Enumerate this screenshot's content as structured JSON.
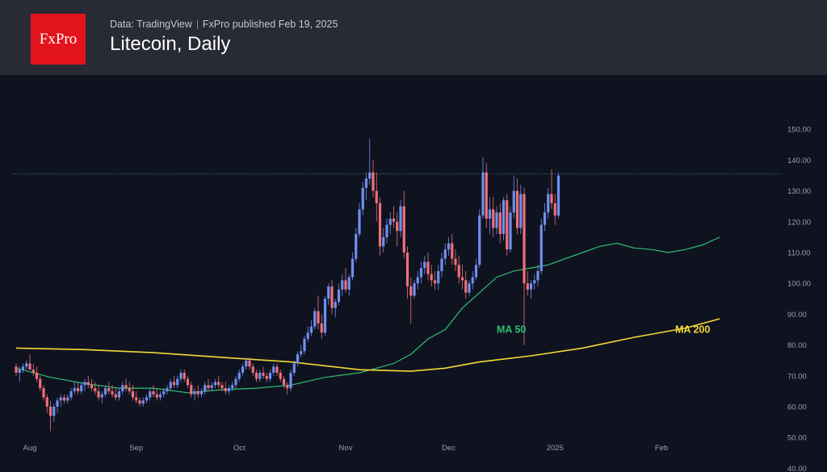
{
  "header": {
    "logo_text": "FxPro",
    "source": "Data: TradingView",
    "publisher": "FxPro published Feb 19, 2025",
    "title": "Litecoin, Daily"
  },
  "chart_data": {
    "type": "candlestick",
    "title": "Litecoin, Daily",
    "ylim": [
      40,
      152
    ],
    "y_ticks": [
      "150.00",
      "140.00",
      "130.00",
      "120.00",
      "110.00",
      "100.00",
      "90.00",
      "80.00",
      "70.00",
      "60.00",
      "50.00",
      "40.00"
    ],
    "x_ticks": [
      {
        "label": "Aug",
        "index": 4
      },
      {
        "label": "Sep",
        "index": 35
      },
      {
        "label": "Oct",
        "index": 65
      },
      {
        "label": "Nov",
        "index": 96
      },
      {
        "label": "Dec",
        "index": 126
      },
      {
        "label": "2025",
        "index": 157
      },
      {
        "label": "Feb",
        "index": 188
      }
    ],
    "current_level": 135.5,
    "annotations": [
      {
        "text": "MA 50",
        "index": 140,
        "value": 84,
        "color": "#2fbf71"
      },
      {
        "text": "MA 200",
        "index": 192,
        "value": 84,
        "color": "#f2d933"
      }
    ],
    "up_color": "#6f8ff0",
    "down_color": "#ef7077",
    "ma50_color": "#2fbf71",
    "ma200_color": "#f2d933",
    "series": [
      {
        "name": "MA 50",
        "values": [
          [
            0,
            72.5
          ],
          [
            10,
            69.5
          ],
          [
            20,
            67.5
          ],
          [
            30,
            66
          ],
          [
            40,
            66
          ],
          [
            50,
            64.5
          ],
          [
            60,
            65.5
          ],
          [
            70,
            66
          ],
          [
            80,
            67
          ],
          [
            90,
            69.5
          ],
          [
            100,
            71
          ],
          [
            105,
            72.5
          ],
          [
            110,
            74
          ],
          [
            115,
            77
          ],
          [
            120,
            82
          ],
          [
            125,
            85
          ],
          [
            130,
            92
          ],
          [
            135,
            97
          ],
          [
            140,
            102
          ],
          [
            145,
            104
          ],
          [
            150,
            105
          ],
          [
            155,
            106
          ],
          [
            160,
            108
          ],
          [
            165,
            110
          ],
          [
            170,
            112
          ],
          [
            175,
            113
          ],
          [
            180,
            111.5
          ],
          [
            185,
            111
          ],
          [
            190,
            110
          ],
          [
            195,
            111
          ],
          [
            200,
            112.5
          ],
          [
            205,
            115
          ]
        ]
      },
      {
        "name": "MA 200",
        "values": [
          [
            0,
            79
          ],
          [
            20,
            78.5
          ],
          [
            40,
            77.5
          ],
          [
            60,
            76
          ],
          [
            80,
            74.5
          ],
          [
            100,
            72
          ],
          [
            115,
            71.5
          ],
          [
            125,
            72.5
          ],
          [
            135,
            74.5
          ],
          [
            150,
            76.5
          ],
          [
            165,
            79
          ],
          [
            180,
            82.5
          ],
          [
            195,
            85.5
          ],
          [
            205,
            88.5
          ]
        ]
      }
    ],
    "candles": [
      [
        73,
        74,
        70,
        71
      ],
      [
        71,
        73,
        68,
        72
      ],
      [
        72,
        74,
        71,
        73
      ],
      [
        73,
        75,
        72,
        74
      ],
      [
        74,
        77,
        72,
        72
      ],
      [
        72,
        74,
        70,
        71
      ],
      [
        71,
        73,
        68,
        69
      ],
      [
        69,
        70,
        65,
        66
      ],
      [
        66,
        67,
        62,
        63
      ],
      [
        63,
        64,
        58,
        60
      ],
      [
        60,
        62,
        52,
        57
      ],
      [
        57,
        61,
        55,
        60
      ],
      [
        60,
        63,
        58,
        62
      ],
      [
        62,
        64,
        60,
        63
      ],
      [
        63,
        64,
        61,
        62
      ],
      [
        62,
        64,
        61,
        63
      ],
      [
        63,
        66,
        62,
        65
      ],
      [
        65,
        68,
        64,
        66
      ],
      [
        66,
        68,
        64,
        65
      ],
      [
        65,
        68,
        64,
        67
      ],
      [
        67,
        69,
        65,
        68
      ],
      [
        68,
        70,
        66,
        67
      ],
      [
        67,
        69,
        65,
        66
      ],
      [
        66,
        68,
        64,
        65
      ],
      [
        65,
        67,
        62,
        63
      ],
      [
        63,
        65,
        61,
        64
      ],
      [
        64,
        67,
        63,
        66
      ],
      [
        66,
        68,
        64,
        65
      ],
      [
        65,
        67,
        63,
        64
      ],
      [
        64,
        66,
        62,
        63
      ],
      [
        63,
        66,
        62,
        65
      ],
      [
        65,
        68,
        64,
        67
      ],
      [
        67,
        69,
        65,
        66
      ],
      [
        66,
        68,
        64,
        65
      ],
      [
        65,
        67,
        62,
        63
      ],
      [
        63,
        65,
        61,
        62
      ],
      [
        62,
        63,
        60,
        61
      ],
      [
        61,
        63,
        60,
        62
      ],
      [
        62,
        64,
        61,
        63
      ],
      [
        63,
        66,
        62,
        65
      ],
      [
        65,
        67,
        63,
        64
      ],
      [
        64,
        66,
        62,
        63
      ],
      [
        63,
        65,
        62,
        64
      ],
      [
        64,
        66,
        63,
        65
      ],
      [
        65,
        67,
        64,
        66
      ],
      [
        66,
        69,
        65,
        68
      ],
      [
        68,
        70,
        66,
        67
      ],
      [
        67,
        70,
        66,
        69
      ],
      [
        69,
        72,
        68,
        71
      ],
      [
        71,
        72,
        68,
        69
      ],
      [
        69,
        70,
        66,
        67
      ],
      [
        67,
        68,
        63,
        64
      ],
      [
        64,
        66,
        62,
        65
      ],
      [
        65,
        67,
        63,
        64
      ],
      [
        64,
        66,
        63,
        65
      ],
      [
        65,
        68,
        64,
        67
      ],
      [
        67,
        69,
        65,
        66
      ],
      [
        66,
        68,
        65,
        67
      ],
      [
        67,
        69,
        66,
        68
      ],
      [
        68,
        70,
        66,
        67
      ],
      [
        67,
        68,
        65,
        66
      ],
      [
        66,
        68,
        64,
        65
      ],
      [
        65,
        67,
        64,
        66
      ],
      [
        66,
        68,
        65,
        67
      ],
      [
        67,
        70,
        66,
        69
      ],
      [
        69,
        72,
        68,
        71
      ],
      [
        71,
        74,
        70,
        73
      ],
      [
        73,
        76,
        72,
        75
      ],
      [
        75,
        76,
        72,
        73
      ],
      [
        73,
        74,
        70,
        71
      ],
      [
        71,
        72,
        68,
        69
      ],
      [
        69,
        72,
        68,
        71
      ],
      [
        71,
        73,
        69,
        70
      ],
      [
        70,
        71,
        68,
        69
      ],
      [
        69,
        72,
        68,
        71
      ],
      [
        71,
        74,
        70,
        73
      ],
      [
        73,
        74,
        70,
        71
      ],
      [
        71,
        72,
        68,
        69
      ],
      [
        69,
        70,
        66,
        67
      ],
      [
        67,
        68,
        64,
        66
      ],
      [
        66,
        72,
        65,
        71
      ],
      [
        71,
        75,
        70,
        74
      ],
      [
        74,
        78,
        73,
        77
      ],
      [
        77,
        80,
        76,
        78
      ],
      [
        78,
        83,
        77,
        82
      ],
      [
        82,
        86,
        81,
        84
      ],
      [
        84,
        88,
        83,
        86
      ],
      [
        86,
        92,
        85,
        91
      ],
      [
        91,
        96,
        85,
        87
      ],
      [
        87,
        90,
        82,
        84
      ],
      [
        84,
        96,
        83,
        95
      ],
      [
        95,
        100,
        93,
        99
      ],
      [
        99,
        101,
        90,
        92
      ],
      [
        92,
        95,
        89,
        94
      ],
      [
        94,
        100,
        93,
        98
      ],
      [
        98,
        103,
        96,
        101
      ],
      [
        101,
        105,
        97,
        98
      ],
      [
        98,
        103,
        96,
        102
      ],
      [
        102,
        110,
        101,
        108
      ],
      [
        108,
        118,
        107,
        116
      ],
      [
        116,
        126,
        115,
        124
      ],
      [
        124,
        133,
        122,
        131
      ],
      [
        131,
        136,
        127,
        134
      ],
      [
        134,
        147,
        132,
        136
      ],
      [
        136,
        140,
        128,
        130
      ],
      [
        130,
        136,
        120,
        126
      ],
      [
        126,
        128,
        109,
        112
      ],
      [
        112,
        118,
        110,
        115
      ],
      [
        115,
        121,
        113,
        119
      ],
      [
        119,
        123,
        116,
        121
      ],
      [
        121,
        125,
        118,
        120
      ],
      [
        120,
        123,
        112,
        117
      ],
      [
        117,
        127,
        115,
        125
      ],
      [
        125,
        130,
        108,
        110
      ],
      [
        110,
        112,
        95,
        99
      ],
      [
        99,
        102,
        87,
        96
      ],
      [
        96,
        101,
        95,
        100
      ],
      [
        100,
        104,
        98,
        102
      ],
      [
        102,
        107,
        100,
        105
      ],
      [
        105,
        109,
        103,
        107
      ],
      [
        107,
        110,
        101,
        103
      ],
      [
        103,
        106,
        99,
        101
      ],
      [
        101,
        104,
        98,
        100
      ],
      [
        100,
        106,
        98,
        104
      ],
      [
        104,
        110,
        102,
        108
      ],
      [
        108,
        113,
        106,
        111
      ],
      [
        111,
        115,
        109,
        113
      ],
      [
        113,
        116,
        106,
        108
      ],
      [
        108,
        111,
        104,
        106
      ],
      [
        106,
        109,
        100,
        102
      ],
      [
        102,
        106,
        98,
        101
      ],
      [
        101,
        104,
        95,
        97
      ],
      [
        97,
        101,
        96,
        100
      ],
      [
        100,
        104,
        98,
        102
      ],
      [
        102,
        108,
        101,
        106
      ],
      [
        106,
        124,
        105,
        122
      ],
      [
        122,
        141,
        121,
        136
      ],
      [
        136,
        139,
        118,
        121
      ],
      [
        121,
        128,
        116,
        124
      ],
      [
        124,
        128,
        115,
        118
      ],
      [
        118,
        125,
        116,
        123
      ],
      [
        123,
        126,
        113,
        116
      ],
      [
        116,
        128,
        114,
        127
      ],
      [
        127,
        129,
        109,
        111
      ],
      [
        111,
        125,
        110,
        123
      ],
      [
        123,
        135,
        121,
        130
      ],
      [
        130,
        134,
        116,
        118
      ],
      [
        118,
        132,
        116,
        129
      ],
      [
        129,
        131,
        80,
        100
      ],
      [
        100,
        104,
        96,
        98
      ],
      [
        98,
        101,
        95,
        100
      ],
      [
        100,
        103,
        98,
        101
      ],
      [
        101,
        106,
        99,
        104
      ],
      [
        104,
        121,
        103,
        119
      ],
      [
        119,
        126,
        117,
        123
      ],
      [
        123,
        131,
        121,
        129
      ],
      [
        129,
        137,
        124,
        126
      ],
      [
        126,
        129,
        119,
        122
      ],
      [
        122,
        136,
        121,
        135
      ]
    ]
  }
}
